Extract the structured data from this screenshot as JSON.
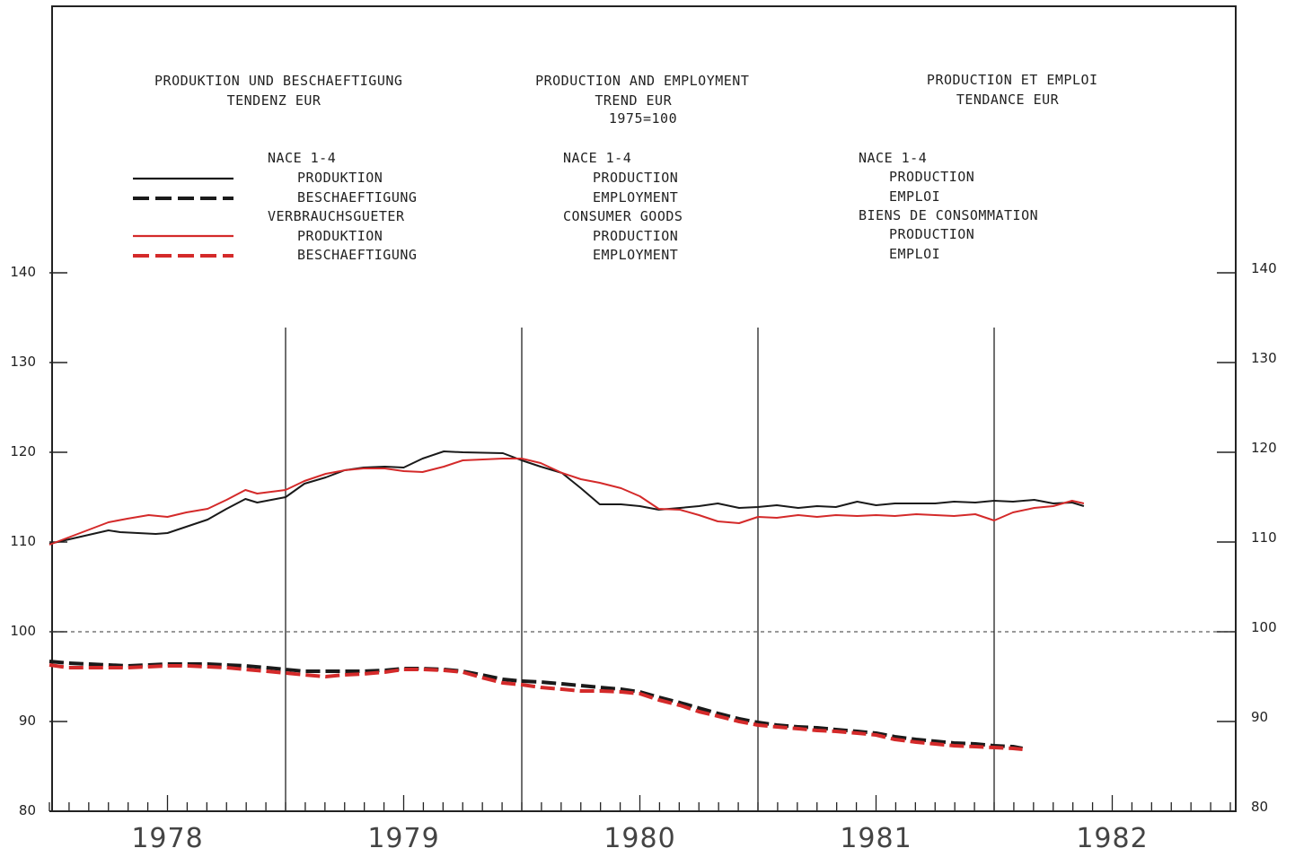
{
  "headers": [
    {
      "lines": [
        "PRODUKTION UND BESCHAEFTIGUNG",
        "TENDENZ EUR"
      ]
    },
    {
      "lines": [
        "PRODUCTION AND EMPLOYMENT",
        "TREND EUR",
        "1975=100"
      ]
    },
    {
      "lines": [
        "PRODUCTION ET EMPLOI",
        "TENDANCE EUR"
      ]
    }
  ],
  "legend": {
    "de": {
      "group1": "NACE 1-4",
      "prod1": "PRODUKTION",
      "emp1": "BESCHAEFTIGUNG",
      "group2": "VERBRAUCHSGUETER",
      "prod2": "PRODUKTION",
      "emp2": "BESCHAEFTIGUNG"
    },
    "en": {
      "group1": "NACE 1-4",
      "prod1": "PRODUCTION",
      "emp1": "EMPLOYMENT",
      "group2": "CONSUMER GOODS",
      "prod2": "PRODUCTION",
      "emp2": "EMPLOYMENT"
    },
    "fr": {
      "group1": "NACE 1-4",
      "prod1": "PRODUCTION",
      "emp1": "EMPLOI",
      "group2": "BIENS DE CONSOMMATION",
      "prod2": "PRODUCTION",
      "emp2": "EMPLOI"
    }
  },
  "colors": {
    "nace": "#1a1a1a",
    "consumer": "#d42a2a",
    "frame": "#222222"
  },
  "chart_data": {
    "type": "line",
    "x_unit": "year",
    "xlim": [
      1977.5,
      1982.5
    ],
    "ylim": [
      80,
      140
    ],
    "y_ticks": [
      80,
      90,
      100,
      110,
      120,
      130,
      140
    ],
    "x_labels": [
      "1978",
      "1979",
      "1980",
      "1981",
      "1982"
    ],
    "year_dividers": [
      1978.5,
      1979.5,
      1980.5,
      1981.5
    ],
    "reference_line": 100,
    "series": [
      {
        "key": "nace_prod",
        "style": "solid",
        "color": "#1a1a1a",
        "x": [
          1977.5,
          1977.75,
          1977.8,
          1977.95,
          1978.0,
          1978.17,
          1978.25,
          1978.33,
          1978.38,
          1978.5,
          1978.58,
          1978.67,
          1978.75,
          1978.83,
          1978.92,
          1979.0,
          1979.08,
          1979.17,
          1979.25,
          1979.42,
          1979.5,
          1979.58,
          1979.67,
          1979.75,
          1979.83,
          1979.92,
          1980.0,
          1980.08,
          1980.17,
          1980.25,
          1980.33,
          1980.42,
          1980.5,
          1980.58,
          1980.67,
          1980.75,
          1980.83,
          1980.92,
          1981.0,
          1981.08,
          1981.17,
          1981.25,
          1981.33,
          1981.42,
          1981.5,
          1981.58,
          1981.67,
          1981.75,
          1981.83,
          1981.88
        ],
        "y": [
          109.8,
          111.3,
          111.1,
          110.9,
          111.0,
          112.5,
          113.7,
          114.8,
          114.4,
          115.0,
          116.5,
          117.2,
          118.0,
          118.3,
          118.4,
          118.3,
          119.3,
          120.1,
          120.0,
          119.9,
          119.1,
          118.4,
          117.7,
          116.0,
          114.2,
          114.2,
          114.0,
          113.6,
          113.8,
          114.0,
          114.3,
          113.8,
          113.9,
          114.1,
          113.8,
          114.0,
          113.9,
          114.5,
          114.1,
          114.3,
          114.3,
          114.3,
          114.5,
          114.4,
          114.6,
          114.5,
          114.7,
          114.3,
          114.4,
          114.0
        ]
      },
      {
        "key": "nace_emp",
        "style": "dashed",
        "color": "#1a1a1a",
        "x": [
          1977.5,
          1977.58,
          1977.67,
          1977.75,
          1977.83,
          1977.92,
          1978.0,
          1978.08,
          1978.17,
          1978.25,
          1978.33,
          1978.42,
          1978.5,
          1978.58,
          1978.67,
          1978.75,
          1978.83,
          1978.92,
          1979.0,
          1979.08,
          1979.17,
          1979.25,
          1979.33,
          1979.42,
          1979.5,
          1979.58,
          1979.67,
          1979.75,
          1979.83,
          1979.92,
          1980.0,
          1980.08,
          1980.17,
          1980.25,
          1980.33,
          1980.42,
          1980.5,
          1980.58,
          1980.67,
          1980.75,
          1980.83,
          1980.92,
          1981.0,
          1981.08,
          1981.17,
          1981.25,
          1981.33,
          1981.42,
          1981.5,
          1981.58,
          1981.62
        ],
        "y": [
          96.7,
          96.5,
          96.4,
          96.3,
          96.2,
          96.3,
          96.4,
          96.4,
          96.4,
          96.3,
          96.2,
          96.0,
          95.8,
          95.6,
          95.6,
          95.6,
          95.6,
          95.7,
          95.9,
          95.9,
          95.8,
          95.6,
          95.2,
          94.7,
          94.5,
          94.4,
          94.2,
          94.0,
          93.8,
          93.6,
          93.3,
          92.7,
          92.1,
          91.5,
          90.9,
          90.3,
          89.9,
          89.6,
          89.4,
          89.3,
          89.1,
          88.9,
          88.7,
          88.3,
          88.0,
          87.8,
          87.6,
          87.5,
          87.3,
          87.2,
          87.0
        ]
      },
      {
        "key": "cons_prod",
        "style": "solid",
        "color": "#d42a2a",
        "x": [
          1977.5,
          1977.75,
          1977.83,
          1977.92,
          1978.0,
          1978.08,
          1978.17,
          1978.25,
          1978.33,
          1978.38,
          1978.5,
          1978.58,
          1978.67,
          1978.75,
          1978.83,
          1978.92,
          1979.0,
          1979.08,
          1979.17,
          1979.25,
          1979.42,
          1979.5,
          1979.58,
          1979.67,
          1979.75,
          1979.83,
          1979.92,
          1980.0,
          1980.08,
          1980.17,
          1980.25,
          1980.33,
          1980.42,
          1980.5,
          1980.58,
          1980.67,
          1980.75,
          1980.83,
          1980.92,
          1981.0,
          1981.08,
          1981.17,
          1981.25,
          1981.33,
          1981.42,
          1981.5,
          1981.58,
          1981.67,
          1981.75,
          1981.83,
          1981.88
        ],
        "y": [
          109.7,
          112.2,
          112.6,
          113.0,
          112.8,
          113.3,
          113.7,
          114.7,
          115.8,
          115.4,
          115.8,
          116.8,
          117.6,
          118.0,
          118.2,
          118.2,
          117.9,
          117.8,
          118.4,
          119.1,
          119.3,
          119.3,
          118.8,
          117.7,
          117.0,
          116.6,
          116.0,
          115.1,
          113.7,
          113.6,
          113.0,
          112.3,
          112.1,
          112.8,
          112.7,
          113.0,
          112.8,
          113.0,
          112.9,
          113.0,
          112.9,
          113.1,
          113.0,
          112.9,
          113.1,
          112.4,
          113.3,
          113.8,
          114.0,
          114.6,
          114.3
        ]
      },
      {
        "key": "cons_emp",
        "style": "dashed",
        "color": "#d42a2a",
        "x": [
          1977.5,
          1977.58,
          1977.67,
          1977.75,
          1977.83,
          1977.92,
          1978.0,
          1978.08,
          1978.17,
          1978.25,
          1978.33,
          1978.42,
          1978.5,
          1978.58,
          1978.67,
          1978.75,
          1978.83,
          1978.92,
          1979.0,
          1979.08,
          1979.17,
          1979.25,
          1979.33,
          1979.42,
          1979.5,
          1979.58,
          1979.67,
          1979.75,
          1979.83,
          1979.92,
          1980.0,
          1980.08,
          1980.17,
          1980.25,
          1980.33,
          1980.42,
          1980.5,
          1980.58,
          1980.67,
          1980.75,
          1980.83,
          1980.92,
          1981.0,
          1981.08,
          1981.17,
          1981.25,
          1981.33,
          1981.42,
          1981.5,
          1981.58,
          1981.62
        ],
        "y": [
          96.3,
          96.0,
          96.0,
          96.0,
          96.0,
          96.1,
          96.2,
          96.2,
          96.1,
          96.0,
          95.8,
          95.6,
          95.4,
          95.2,
          95.0,
          95.2,
          95.3,
          95.5,
          95.8,
          95.8,
          95.7,
          95.5,
          94.9,
          94.3,
          94.1,
          93.8,
          93.6,
          93.4,
          93.4,
          93.3,
          93.1,
          92.4,
          91.8,
          91.1,
          90.6,
          90.0,
          89.6,
          89.4,
          89.2,
          89.0,
          88.9,
          88.7,
          88.5,
          88.0,
          87.7,
          87.5,
          87.3,
          87.2,
          87.1,
          87.0,
          86.9
        ]
      }
    ]
  }
}
